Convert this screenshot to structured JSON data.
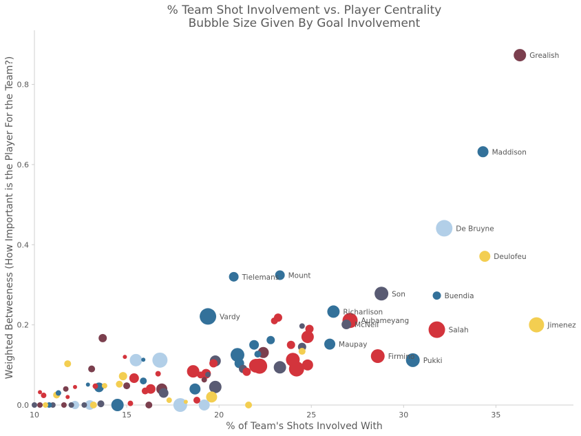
{
  "chart_data": {
    "type": "scatter",
    "title": "% Team Shot Involvement vs. Player Centrality",
    "subtitle": "Bubble Size Given By Goal Involvement",
    "xlabel": "% of Team's Shots Involved With",
    "ylabel": "Weighted Betweeness (How Important is the Player For the Team?)",
    "xlim": [
      10,
      39.2
    ],
    "ylim": [
      0,
      0.935
    ],
    "x_ticks": [
      10,
      15,
      20,
      25,
      30,
      35
    ],
    "y_ticks": [
      0.0,
      0.2,
      0.4,
      0.6,
      0.8
    ],
    "x_tick_labels": [
      "10",
      "15",
      "20",
      "25",
      "30",
      "35"
    ],
    "y_tick_labels": [
      "0.0",
      "0.2",
      "0.4",
      "0.6",
      "0.8"
    ],
    "grid": false,
    "colors": {
      "maroon": "#7b3f4e",
      "teal": "#33719a",
      "light_blue": "#b2cfe8",
      "yellow": "#f3ce51",
      "red": "#d3343c",
      "slate": "#595b73"
    },
    "points": [
      {
        "x": 36.3,
        "y": 0.873,
        "size": 9,
        "color": "maroon",
        "label": "Grealish"
      },
      {
        "x": 34.3,
        "y": 0.632,
        "size": 8,
        "color": "teal",
        "label": "Maddison"
      },
      {
        "x": 32.2,
        "y": 0.441,
        "size": 12,
        "color": "light_blue",
        "label": "De Bruyne"
      },
      {
        "x": 34.4,
        "y": 0.371,
        "size": 8,
        "color": "yellow",
        "label": "Deulofeu"
      },
      {
        "x": 20.8,
        "y": 0.32,
        "size": 7,
        "color": "teal",
        "label": "Tielemans"
      },
      {
        "x": 23.3,
        "y": 0.324,
        "size": 7,
        "color": "teal",
        "label": "Mount"
      },
      {
        "x": 28.8,
        "y": 0.278,
        "size": 10,
        "color": "slate",
        "label": "Son"
      },
      {
        "x": 31.8,
        "y": 0.273,
        "size": 6,
        "color": "teal",
        "label": "Buendia"
      },
      {
        "x": 19.4,
        "y": 0.221,
        "size": 12,
        "color": "teal",
        "label": "Vardy"
      },
      {
        "x": 26.2,
        "y": 0.233,
        "size": 9,
        "color": "teal",
        "label": "Richarlison"
      },
      {
        "x": 27.1,
        "y": 0.211,
        "size": 11,
        "color": "red",
        "label": "Aubameyang"
      },
      {
        "x": 26.9,
        "y": 0.201,
        "size": 7,
        "color": "slate",
        "label": "McNeil"
      },
      {
        "x": 37.2,
        "y": 0.2,
        "size": 11,
        "color": "yellow",
        "label": "Jimenez"
      },
      {
        "x": 31.8,
        "y": 0.188,
        "size": 12,
        "color": "red",
        "label": "Salah"
      },
      {
        "x": 26.0,
        "y": 0.152,
        "size": 8,
        "color": "teal",
        "label": "Maupay"
      },
      {
        "x": 28.6,
        "y": 0.122,
        "size": 10,
        "color": "red",
        "label": "Firmino"
      },
      {
        "x": 30.5,
        "y": 0.112,
        "size": 10,
        "color": "teal",
        "label": "Pukki"
      },
      {
        "x": 13.7,
        "y": 0.167,
        "size": 6,
        "color": "maroon",
        "label": ""
      },
      {
        "x": 11.8,
        "y": 0.103,
        "size": 5,
        "color": "yellow",
        "label": ""
      },
      {
        "x": 13.1,
        "y": 0.09,
        "size": 5,
        "color": "maroon",
        "label": ""
      },
      {
        "x": 15.5,
        "y": 0.112,
        "size": 9,
        "color": "light_blue",
        "label": ""
      },
      {
        "x": 16.8,
        "y": 0.112,
        "size": 11,
        "color": "light_blue",
        "label": ""
      },
      {
        "x": 15.9,
        "y": 0.113,
        "size": 3,
        "color": "teal",
        "label": ""
      },
      {
        "x": 14.9,
        "y": 0.12,
        "size": 3,
        "color": "red",
        "label": ""
      },
      {
        "x": 14.8,
        "y": 0.072,
        "size": 6,
        "color": "yellow",
        "label": ""
      },
      {
        "x": 15.4,
        "y": 0.067,
        "size": 7,
        "color": "red",
        "label": ""
      },
      {
        "x": 15.9,
        "y": 0.06,
        "size": 5,
        "color": "teal",
        "label": ""
      },
      {
        "x": 14.6,
        "y": 0.052,
        "size": 5,
        "color": "yellow",
        "label": ""
      },
      {
        "x": 15.0,
        "y": 0.048,
        "size": 5,
        "color": "maroon",
        "label": ""
      },
      {
        "x": 13.8,
        "y": 0.048,
        "size": 4,
        "color": "yellow",
        "label": ""
      },
      {
        "x": 13.5,
        "y": 0.044,
        "size": 7,
        "color": "teal",
        "label": ""
      },
      {
        "x": 13.3,
        "y": 0.047,
        "size": 4,
        "color": "red",
        "label": ""
      },
      {
        "x": 12.9,
        "y": 0.051,
        "size": 3,
        "color": "teal",
        "label": ""
      },
      {
        "x": 11.7,
        "y": 0.04,
        "size": 4,
        "color": "maroon",
        "label": ""
      },
      {
        "x": 11.3,
        "y": 0.03,
        "size": 4,
        "color": "teal",
        "label": ""
      },
      {
        "x": 11.2,
        "y": 0.025,
        "size": 5,
        "color": "yellow",
        "label": ""
      },
      {
        "x": 12.2,
        "y": 0.045,
        "size": 3,
        "color": "red",
        "label": ""
      },
      {
        "x": 10.3,
        "y": 0.032,
        "size": 3,
        "color": "red",
        "label": ""
      },
      {
        "x": 10.5,
        "y": 0.024,
        "size": 4,
        "color": "red",
        "label": ""
      },
      {
        "x": 11.8,
        "y": 0.02,
        "size": 3,
        "color": "red",
        "label": ""
      },
      {
        "x": 16.3,
        "y": 0.04,
        "size": 7,
        "color": "red",
        "label": ""
      },
      {
        "x": 16.7,
        "y": 0.078,
        "size": 4,
        "color": "red",
        "label": ""
      },
      {
        "x": 16.9,
        "y": 0.04,
        "size": 8,
        "color": "maroon",
        "label": ""
      },
      {
        "x": 17.0,
        "y": 0.03,
        "size": 7,
        "color": "slate",
        "label": ""
      },
      {
        "x": 17.3,
        "y": 0.012,
        "size": 4,
        "color": "yellow",
        "label": ""
      },
      {
        "x": 16.0,
        "y": 0.035,
        "size": 5,
        "color": "red",
        "label": ""
      },
      {
        "x": 18.6,
        "y": 0.084,
        "size": 9,
        "color": "red",
        "label": ""
      },
      {
        "x": 18.7,
        "y": 0.04,
        "size": 8,
        "color": "teal",
        "label": ""
      },
      {
        "x": 19.0,
        "y": 0.075,
        "size": 5,
        "color": "red",
        "label": ""
      },
      {
        "x": 19.3,
        "y": 0.078,
        "size": 7,
        "color": "red",
        "label": ""
      },
      {
        "x": 19.4,
        "y": 0.076,
        "size": 4,
        "color": "slate",
        "label": ""
      },
      {
        "x": 19.2,
        "y": 0.063,
        "size": 4,
        "color": "maroon",
        "label": ""
      },
      {
        "x": 18.8,
        "y": 0.012,
        "size": 5,
        "color": "red",
        "label": ""
      },
      {
        "x": 19.6,
        "y": 0.02,
        "size": 8,
        "color": "yellow",
        "label": ""
      },
      {
        "x": 19.8,
        "y": 0.045,
        "size": 9,
        "color": "slate",
        "label": ""
      },
      {
        "x": 19.8,
        "y": 0.11,
        "size": 8,
        "color": "slate",
        "label": ""
      },
      {
        "x": 19.7,
        "y": 0.104,
        "size": 6,
        "color": "red",
        "label": ""
      },
      {
        "x": 21.0,
        "y": 0.125,
        "size": 10,
        "color": "teal",
        "label": ""
      },
      {
        "x": 21.1,
        "y": 0.104,
        "size": 7,
        "color": "teal",
        "label": ""
      },
      {
        "x": 21.3,
        "y": 0.09,
        "size": 6,
        "color": "slate",
        "label": ""
      },
      {
        "x": 21.5,
        "y": 0.083,
        "size": 6,
        "color": "red",
        "label": ""
      },
      {
        "x": 21.9,
        "y": 0.15,
        "size": 7,
        "color": "teal",
        "label": ""
      },
      {
        "x": 22.1,
        "y": 0.127,
        "size": 5,
        "color": "teal",
        "label": ""
      },
      {
        "x": 22.2,
        "y": 0.097,
        "size": 11,
        "color": "red",
        "label": ""
      },
      {
        "x": 22.4,
        "y": 0.131,
        "size": 8,
        "color": "maroon",
        "label": ""
      },
      {
        "x": 22.8,
        "y": 0.162,
        "size": 6,
        "color": "teal",
        "label": ""
      },
      {
        "x": 23.0,
        "y": 0.21,
        "size": 5,
        "color": "red",
        "label": ""
      },
      {
        "x": 23.2,
        "y": 0.218,
        "size": 6,
        "color": "red",
        "label": ""
      },
      {
        "x": 23.3,
        "y": 0.094,
        "size": 9,
        "color": "slate",
        "label": ""
      },
      {
        "x": 23.9,
        "y": 0.15,
        "size": 6,
        "color": "red",
        "label": ""
      },
      {
        "x": 24.0,
        "y": 0.113,
        "size": 10,
        "color": "red",
        "label": ""
      },
      {
        "x": 24.2,
        "y": 0.09,
        "size": 11,
        "color": "red",
        "label": ""
      },
      {
        "x": 24.5,
        "y": 0.197,
        "size": 4,
        "color": "slate",
        "label": ""
      },
      {
        "x": 24.5,
        "y": 0.145,
        "size": 6,
        "color": "slate",
        "label": ""
      },
      {
        "x": 24.5,
        "y": 0.134,
        "size": 5,
        "color": "yellow",
        "label": ""
      },
      {
        "x": 24.8,
        "y": 0.17,
        "size": 9,
        "color": "red",
        "label": ""
      },
      {
        "x": 24.9,
        "y": 0.19,
        "size": 6,
        "color": "red",
        "label": ""
      },
      {
        "x": 24.8,
        "y": 0.1,
        "size": 8,
        "color": "red",
        "label": ""
      },
      {
        "x": 22.0,
        "y": 0.098,
        "size": 10,
        "color": "red",
        "label": ""
      },
      {
        "x": 21.6,
        "y": 0.0,
        "size": 5,
        "color": "yellow",
        "label": ""
      },
      {
        "x": 17.9,
        "y": 0.0,
        "size": 10,
        "color": "light_blue",
        "label": ""
      },
      {
        "x": 19.2,
        "y": 0.0,
        "size": 8,
        "color": "light_blue",
        "label": ""
      },
      {
        "x": 18.2,
        "y": 0.008,
        "size": 3,
        "color": "yellow",
        "label": ""
      },
      {
        "x": 14.5,
        "y": 0.0,
        "size": 9,
        "color": "teal",
        "label": ""
      },
      {
        "x": 15.2,
        "y": 0.004,
        "size": 4,
        "color": "red",
        "label": ""
      },
      {
        "x": 16.2,
        "y": 0.0,
        "size": 5,
        "color": "maroon",
        "label": ""
      },
      {
        "x": 13.6,
        "y": 0.003,
        "size": 5,
        "color": "slate",
        "label": ""
      },
      {
        "x": 13.0,
        "y": 0.0,
        "size": 7,
        "color": "light_blue",
        "label": ""
      },
      {
        "x": 13.2,
        "y": 0.0,
        "size": 5,
        "color": "yellow",
        "label": ""
      },
      {
        "x": 12.7,
        "y": 0.0,
        "size": 4,
        "color": "slate",
        "label": ""
      },
      {
        "x": 12.2,
        "y": 0.0,
        "size": 6,
        "color": "light_blue",
        "label": ""
      },
      {
        "x": 12.0,
        "y": 0.0,
        "size": 4,
        "color": "slate",
        "label": ""
      },
      {
        "x": 11.6,
        "y": 0.0,
        "size": 4,
        "color": "maroon",
        "label": ""
      },
      {
        "x": 11.0,
        "y": 0.0,
        "size": 4,
        "color": "slate",
        "label": ""
      },
      {
        "x": 10.8,
        "y": 0.0,
        "size": 4,
        "color": "teal",
        "label": ""
      },
      {
        "x": 10.6,
        "y": 0.0,
        "size": 4,
        "color": "yellow",
        "label": ""
      },
      {
        "x": 10.3,
        "y": 0.0,
        "size": 4,
        "color": "maroon",
        "label": ""
      },
      {
        "x": 10.0,
        "y": 0.0,
        "size": 4,
        "color": "slate",
        "label": ""
      }
    ]
  }
}
